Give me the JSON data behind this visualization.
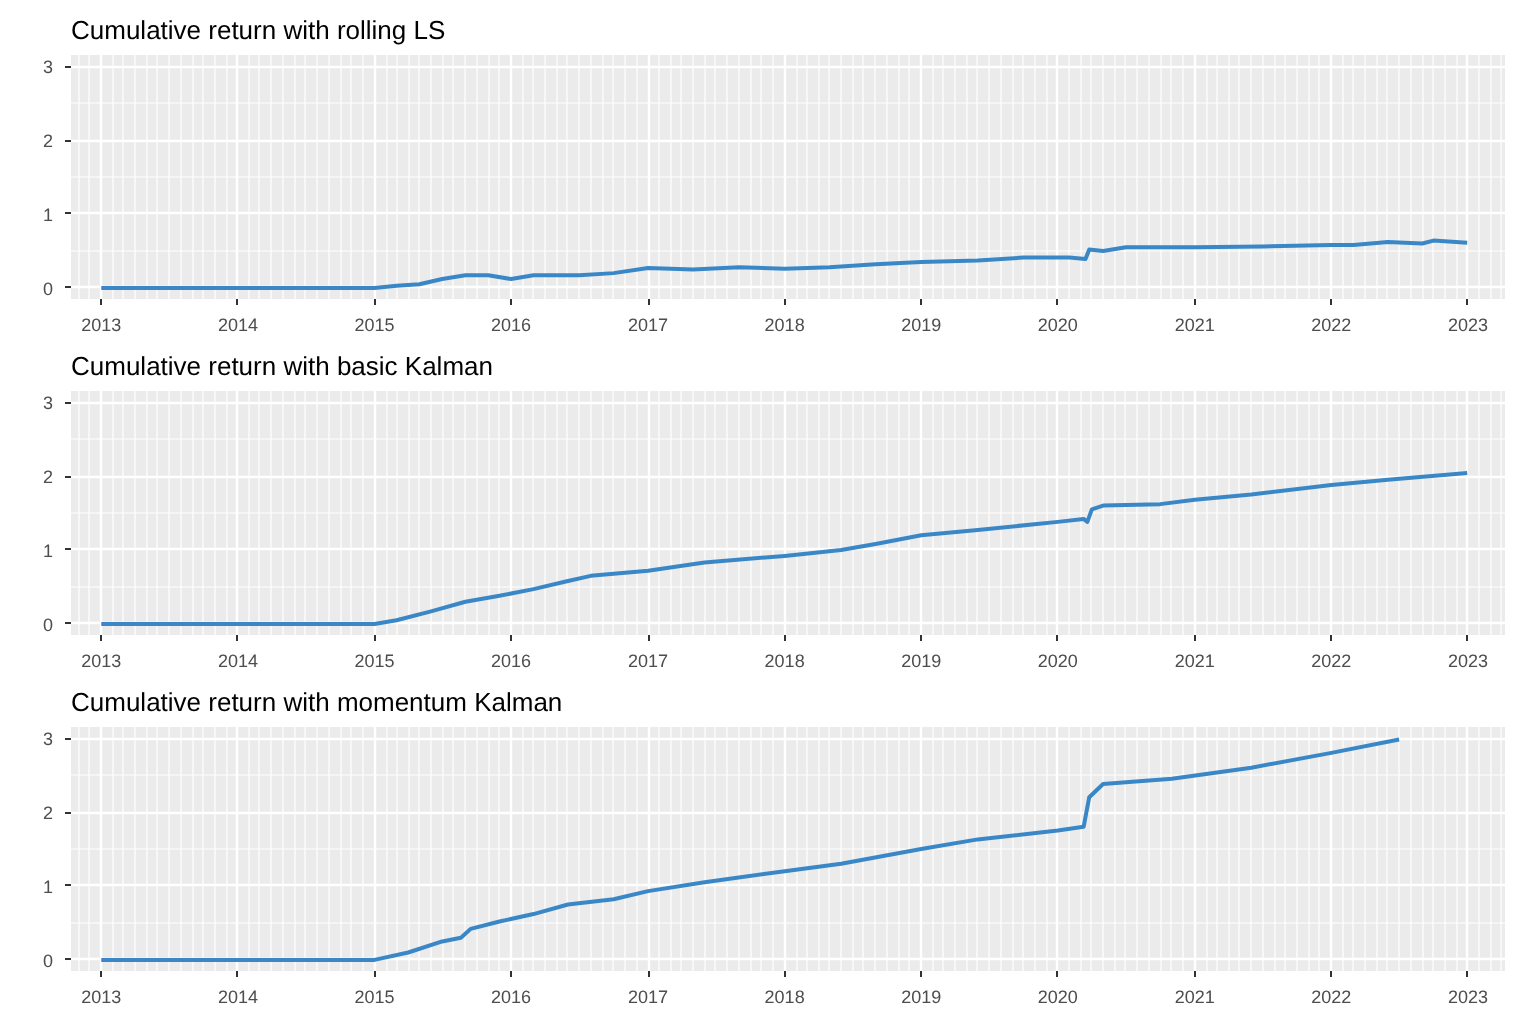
{
  "chart_data": [
    {
      "type": "line",
      "title": "Cumulative return with rolling LS",
      "xlim": [
        "2012-10-12",
        "2023-04-10"
      ],
      "xticks": [
        "2013",
        "2014",
        "2015",
        "2016",
        "2017",
        "2018",
        "2019",
        "2020",
        "2021",
        "2022",
        "2023"
      ],
      "ylim": [
        -0.15,
        3.15
      ],
      "yticks": [
        0,
        1,
        2,
        3
      ],
      "grid": true,
      "marker": "none",
      "line_style": "solid",
      "series": [
        {
          "color": "#3a87c8",
          "x": [
            "2013-01-01",
            "2015-01-01",
            "2015-03-01",
            "2015-05-01",
            "2015-07-01",
            "2015-09-01",
            "2015-11-01",
            "2016-01-01",
            "2016-03-01",
            "2016-07-01",
            "2016-10-01",
            "2017-01-01",
            "2017-05-01",
            "2017-09-01",
            "2018-01-01",
            "2018-05-01",
            "2018-09-01",
            "2019-01-01",
            "2019-06-01",
            "2019-10-01",
            "2020-02-01",
            "2020-03-15",
            "2020-03-25",
            "2020-05-01",
            "2020-07-01",
            "2021-01-01",
            "2021-07-01",
            "2022-01-01",
            "2022-03-01",
            "2022-06-01",
            "2022-09-01",
            "2022-10-01",
            "2022-12-30"
          ],
          "values": [
            0,
            0,
            0.03,
            0.05,
            0.12,
            0.17,
            0.17,
            0.12,
            0.17,
            0.17,
            0.2,
            0.27,
            0.25,
            0.28,
            0.26,
            0.28,
            0.32,
            0.35,
            0.37,
            0.41,
            0.41,
            0.39,
            0.52,
            0.5,
            0.55,
            0.55,
            0.56,
            0.58,
            0.58,
            0.62,
            0.6,
            0.64,
            0.61
          ]
        }
      ]
    },
    {
      "type": "line",
      "title": "Cumulative return with basic Kalman",
      "xlim": [
        "2012-10-12",
        "2023-04-10"
      ],
      "xticks": [
        "2013",
        "2014",
        "2015",
        "2016",
        "2017",
        "2018",
        "2019",
        "2020",
        "2021",
        "2022",
        "2023"
      ],
      "ylim": [
        -0.15,
        3.15
      ],
      "yticks": [
        0,
        1,
        2,
        3
      ],
      "grid": true,
      "marker": "none",
      "line_style": "solid",
      "series": [
        {
          "color": "#3a87c8",
          "x": [
            "2013-01-01",
            "2015-01-01",
            "2015-03-01",
            "2015-06-01",
            "2015-09-01",
            "2015-12-01",
            "2016-03-01",
            "2016-06-01",
            "2016-08-01",
            "2017-01-01",
            "2017-06-01",
            "2018-01-01",
            "2018-06-01",
            "2018-09-01",
            "2019-01-01",
            "2019-06-01",
            "2020-01-01",
            "2020-03-10",
            "2020-03-20",
            "2020-04-01",
            "2020-05-01",
            "2020-10-01",
            "2021-01-01",
            "2021-06-01",
            "2022-01-01",
            "2022-06-01",
            "2022-12-30"
          ],
          "values": [
            0,
            0,
            0.05,
            0.17,
            0.3,
            0.38,
            0.47,
            0.58,
            0.65,
            0.72,
            0.83,
            0.92,
            1.0,
            1.08,
            1.2,
            1.27,
            1.38,
            1.42,
            1.38,
            1.55,
            1.6,
            1.62,
            1.68,
            1.75,
            1.88,
            1.95,
            2.04
          ]
        }
      ]
    },
    {
      "type": "line",
      "title": "Cumulative return with momentum Kalman",
      "xlim": [
        "2012-10-12",
        "2023-04-10"
      ],
      "xticks": [
        "2013",
        "2014",
        "2015",
        "2016",
        "2017",
        "2018",
        "2019",
        "2020",
        "2021",
        "2022",
        "2023"
      ],
      "ylim": [
        -0.15,
        3.15
      ],
      "yticks": [
        0,
        1,
        2,
        3
      ],
      "grid": true,
      "marker": "none",
      "line_style": "solid",
      "series": [
        {
          "color": "#3a87c8",
          "x": [
            "2013-01-01",
            "2015-01-01",
            "2015-04-01",
            "2015-07-01",
            "2015-08-20",
            "2015-09-15",
            "2015-12-01",
            "2016-03-01",
            "2016-06-01",
            "2016-10-01",
            "2017-01-01",
            "2017-06-01",
            "2018-01-01",
            "2018-06-01",
            "2019-01-01",
            "2019-06-01",
            "2020-01-01",
            "2020-03-10",
            "2020-03-25",
            "2020-05-01",
            "2020-11-01",
            "2021-06-01",
            "2022-01-01",
            "2022-07-01"
          ],
          "values": [
            0,
            0,
            0.1,
            0.25,
            0.3,
            0.42,
            0.52,
            0.62,
            0.75,
            0.82,
            0.93,
            1.05,
            1.2,
            1.3,
            1.5,
            1.63,
            1.75,
            1.8,
            2.2,
            2.38,
            2.45,
            2.6,
            2.8,
            2.98
          ]
        }
      ]
    }
  ]
}
